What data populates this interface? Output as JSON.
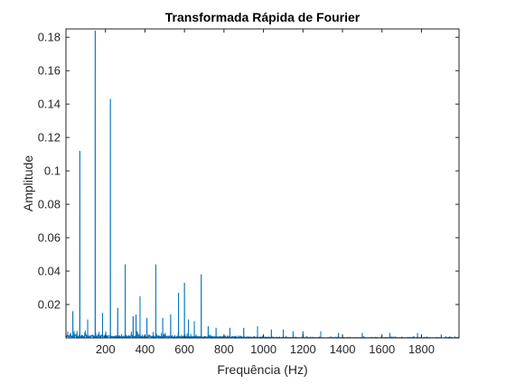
{
  "chart_data": {
    "type": "line",
    "title": "Transformada Rápida de Fourier",
    "xlabel": "Frequência (Hz)",
    "ylabel": "Amplitude",
    "xlim": [
      0,
      1990
    ],
    "ylim": [
      0,
      0.185
    ],
    "xticks": [
      200,
      400,
      600,
      800,
      1000,
      1200,
      1400,
      1600,
      1800
    ],
    "yticks": [
      0.02,
      0.04,
      0.06,
      0.08,
      0.1,
      0.12,
      0.14,
      0.16,
      0.18
    ],
    "xtick_labels": [
      "200",
      "400",
      "600",
      "800",
      "1000",
      "1200",
      "1400",
      "1600",
      "1800"
    ],
    "ytick_labels": [
      "0.02",
      "0.04",
      "0.06",
      "0.08",
      "0.1",
      "0.12",
      "0.14",
      "0.16",
      "0.18"
    ],
    "grid": false,
    "box": true,
    "series_color": "#0072BD",
    "series": [
      {
        "peaks": [
          {
            "x": 35,
            "y": 0.016
          },
          {
            "x": 70,
            "y": 0.112
          },
          {
            "x": 110,
            "y": 0.011
          },
          {
            "x": 148,
            "y": 0.184
          },
          {
            "x": 185,
            "y": 0.015
          },
          {
            "x": 225,
            "y": 0.143
          },
          {
            "x": 262,
            "y": 0.018
          },
          {
            "x": 300,
            "y": 0.044
          },
          {
            "x": 340,
            "y": 0.013
          },
          {
            "x": 355,
            "y": 0.014
          },
          {
            "x": 375,
            "y": 0.025
          },
          {
            "x": 410,
            "y": 0.012
          },
          {
            "x": 455,
            "y": 0.044
          },
          {
            "x": 490,
            "y": 0.012
          },
          {
            "x": 530,
            "y": 0.014
          },
          {
            "x": 570,
            "y": 0.027
          },
          {
            "x": 600,
            "y": 0.033
          },
          {
            "x": 620,
            "y": 0.011
          },
          {
            "x": 650,
            "y": 0.01
          },
          {
            "x": 685,
            "y": 0.038
          },
          {
            "x": 720,
            "y": 0.007
          },
          {
            "x": 760,
            "y": 0.006
          },
          {
            "x": 830,
            "y": 0.006
          },
          {
            "x": 900,
            "y": 0.006
          },
          {
            "x": 970,
            "y": 0.007
          },
          {
            "x": 1040,
            "y": 0.005
          },
          {
            "x": 1100,
            "y": 0.005
          },
          {
            "x": 1150,
            "y": 0.004
          },
          {
            "x": 1200,
            "y": 0.004
          },
          {
            "x": 1290,
            "y": 0.004
          },
          {
            "x": 1380,
            "y": 0.003
          },
          {
            "x": 1500,
            "y": 0.003
          },
          {
            "x": 1640,
            "y": 0.003
          },
          {
            "x": 1780,
            "y": 0.003
          },
          {
            "x": 1900,
            "y": 0.002
          }
        ]
      }
    ]
  }
}
